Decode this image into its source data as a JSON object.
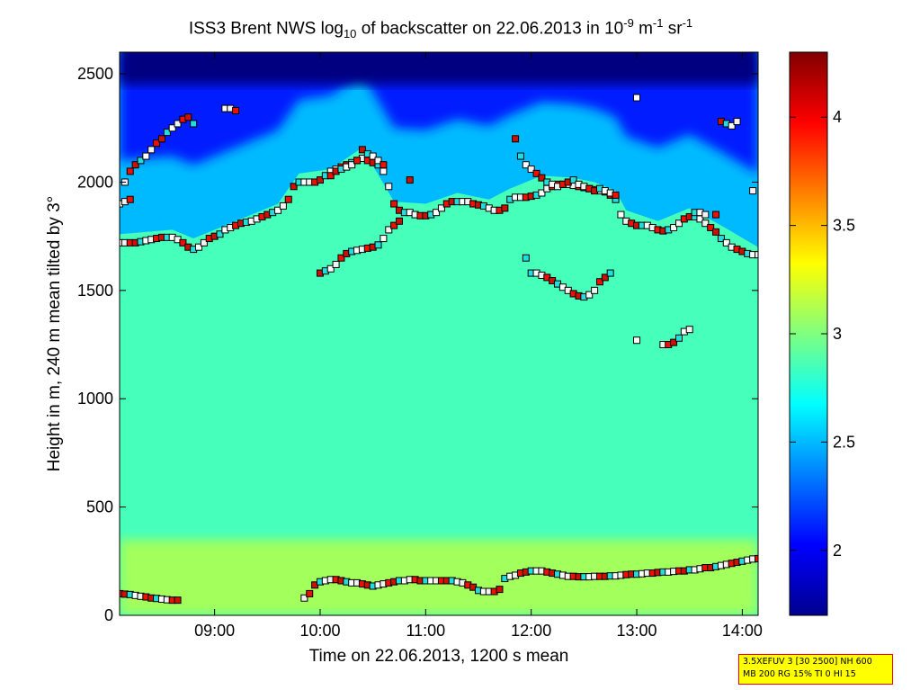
{
  "title": {
    "prefix": "ISS3 Brent NWS log",
    "log_base": "10",
    "middle": " of backscatter on 22.06.2013 in 10",
    "exp1": "-9",
    "unit_m": " m",
    "exp2": "-1",
    "unit_sr": " sr",
    "exp3": "-1"
  },
  "info_box": {
    "line1": "3.5XEFUV 3 [30 2500] NH 600",
    "line2": "MB 200 RG 15% TI 0 HI 15"
  },
  "chart_data": {
    "type": "heatmap",
    "xlabel": "Time on 22.06.2013, 1200 s mean",
    "ylabel": "Height in m, 240 m mean tilted by 3°",
    "x_unit": "hours",
    "xlim": [
      8.1,
      14.15
    ],
    "ylim": [
      0,
      2600
    ],
    "x_ticks": [
      {
        "value": 9,
        "label": "09:00"
      },
      {
        "value": 10,
        "label": "10:00"
      },
      {
        "value": 11,
        "label": "11:00"
      },
      {
        "value": 12,
        "label": "12:00"
      },
      {
        "value": 13,
        "label": "13:00"
      },
      {
        "value": 14,
        "label": "14:00"
      }
    ],
    "y_ticks": [
      0,
      500,
      1000,
      1500,
      2000,
      2500
    ],
    "colorbar": {
      "range": [
        1.7,
        4.3
      ],
      "ticks": [
        2,
        2.5,
        3,
        3.5,
        4
      ],
      "colormap": "jet"
    },
    "field_description": {
      "boundary_layer_top_m": [
        [
          8.1,
          1720
        ],
        [
          8.6,
          1740
        ],
        [
          8.8,
          1700
        ],
        [
          9.0,
          1740
        ],
        [
          9.3,
          1800
        ],
        [
          9.6,
          1860
        ],
        [
          9.8,
          2000
        ],
        [
          10.1,
          2020
        ],
        [
          10.4,
          2120
        ],
        [
          10.7,
          1870
        ],
        [
          11.0,
          1860
        ],
        [
          11.3,
          1910
        ],
        [
          11.6,
          1880
        ],
        [
          11.8,
          1930
        ],
        [
          12.1,
          1990
        ],
        [
          12.4,
          1980
        ],
        [
          12.6,
          1960
        ],
        [
          12.8,
          1920
        ],
        [
          12.9,
          1830
        ],
        [
          13.2,
          1780
        ],
        [
          13.5,
          1840
        ],
        [
          13.8,
          1760
        ],
        [
          14.15,
          1660
        ]
      ],
      "values": {
        "sky_above": 1.7,
        "cloud_band": 2.5,
        "boundary_layer": 2.85,
        "near_surface": 3.15
      }
    },
    "series": [
      {
        "marker": "square",
        "x": [
          8.1,
          8.15,
          8.2,
          8.25,
          8.3,
          8.35,
          8.4,
          8.45,
          8.5,
          8.55,
          8.6,
          8.65,
          8.7,
          8.75,
          8.8,
          8.85,
          8.9,
          8.95,
          9.0,
          9.05,
          9.1,
          9.15,
          9.2,
          9.25,
          9.3,
          9.35,
          9.4,
          9.45,
          9.5,
          9.55,
          9.6,
          9.65,
          9.7,
          9.75,
          9.8,
          9.85,
          9.9,
          9.95,
          10.0,
          10.05,
          10.1,
          10.15,
          10.2,
          10.25,
          10.3,
          10.35,
          10.4,
          10.45,
          10.5,
          10.55,
          10.6,
          10.65,
          10.7,
          10.75,
          10.8,
          10.85,
          10.9,
          10.95,
          11.0,
          11.05,
          11.1,
          11.15,
          11.2,
          11.25,
          11.3,
          11.35,
          11.4,
          11.45,
          11.5,
          11.55,
          11.6,
          11.65,
          11.7,
          11.75,
          11.8,
          11.85,
          11.9,
          11.95,
          12.0,
          12.05,
          12.1,
          12.15,
          12.2,
          12.25,
          12.3,
          12.35,
          12.4,
          12.45,
          12.5,
          12.55,
          12.6,
          12.65,
          12.7,
          12.75,
          12.8,
          12.85,
          12.9,
          12.95,
          13.0,
          13.05,
          13.1,
          13.15,
          13.2,
          13.25,
          13.3,
          13.35,
          13.4,
          13.45,
          13.5,
          13.55,
          13.6,
          13.65,
          13.7,
          13.75,
          13.8,
          13.85,
          13.9,
          13.95,
          14.0,
          14.05,
          14.1,
          14.15
        ],
        "y": [
          1720,
          1720,
          1720,
          1720,
          1725,
          1730,
          1735,
          1740,
          1745,
          1745,
          1745,
          1735,
          1720,
          1700,
          1690,
          1700,
          1720,
          1740,
          1750,
          1760,
          1780,
          1790,
          1800,
          1810,
          1815,
          1820,
          1830,
          1840,
          1850,
          1860,
          1870,
          1890,
          1920,
          1980,
          2000,
          2000,
          2000,
          2000,
          2010,
          2030,
          2050,
          2060,
          2070,
          2080,
          2090,
          2100,
          2110,
          2100,
          2090,
          2080,
          2050,
          1980,
          1900,
          1870,
          1860,
          1860,
          1850,
          1845,
          1845,
          1850,
          1860,
          1880,
          1900,
          1910,
          1910,
          1910,
          1910,
          1900,
          1895,
          1890,
          1880,
          1870,
          1870,
          1880,
          1920,
          1930,
          1930,
          1930,
          1935,
          1940,
          1950,
          1970,
          1980,
          1990,
          1990,
          1990,
          1985,
          1980,
          1975,
          1970,
          1965,
          1960,
          1955,
          1940,
          1920,
          1850,
          1820,
          1810,
          1800,
          1800,
          1800,
          1790,
          1780,
          1775,
          1780,
          1790,
          1810,
          1830,
          1840,
          1840,
          1830,
          1810,
          1790,
          1770,
          1740,
          1720,
          1700,
          1690,
          1680,
          1670,
          1665,
          1665
        ]
      },
      {
        "marker": "square",
        "x": [
          9.85,
          9.9,
          9.95,
          10.0,
          10.05,
          10.1,
          10.15,
          10.2,
          10.25,
          10.3,
          10.35,
          10.4,
          10.45,
          10.5,
          10.55,
          10.6,
          10.65,
          10.7,
          10.75,
          10.8,
          10.85,
          10.9,
          10.95,
          11.0,
          11.05,
          11.1,
          11.15,
          11.2,
          11.25,
          11.3,
          11.35,
          11.4,
          11.45,
          11.5,
          11.55,
          11.6,
          11.65,
          11.7,
          11.75,
          11.8,
          11.85,
          11.9,
          11.95,
          12.0,
          12.05,
          12.1,
          12.15,
          12.2,
          12.25,
          12.3,
          12.35,
          12.4,
          12.45,
          12.5,
          12.55,
          12.6,
          12.65,
          12.7,
          12.75,
          12.8,
          12.85,
          12.9,
          12.95,
          13.0,
          13.05,
          13.1,
          13.15,
          13.2,
          13.25,
          13.3,
          13.35,
          13.4,
          13.45,
          13.5,
          13.55,
          13.6,
          13.65,
          13.7,
          13.75,
          13.8,
          13.85,
          13.9,
          13.95,
          14.0,
          14.05,
          14.1,
          14.15
        ],
        "y": [
          80,
          100,
          140,
          155,
          160,
          165,
          165,
          160,
          155,
          150,
          150,
          145,
          140,
          135,
          140,
          145,
          150,
          155,
          160,
          160,
          165,
          165,
          160,
          160,
          160,
          160,
          160,
          160,
          160,
          155,
          150,
          140,
          130,
          115,
          110,
          110,
          110,
          120,
          170,
          180,
          185,
          195,
          200,
          205,
          205,
          205,
          200,
          195,
          190,
          185,
          180,
          180,
          178,
          178,
          178,
          180,
          180,
          180,
          182,
          182,
          185,
          188,
          190,
          190,
          192,
          195,
          195,
          198,
          200,
          200,
          203,
          205,
          205,
          210,
          210,
          215,
          220,
          220,
          225,
          230,
          235,
          240,
          245,
          250,
          255,
          260,
          262
        ]
      },
      {
        "marker": "square",
        "x": [
          8.1,
          8.15,
          8.2,
          8.25,
          8.3,
          8.35,
          8.4,
          8.45,
          8.5,
          8.55,
          8.6,
          8.65
        ],
        "y": [
          100,
          98,
          96,
          92,
          88,
          85,
          80,
          78,
          75,
          72,
          70,
          70
        ]
      },
      {
        "marker": "square",
        "x": [
          10.0,
          10.05,
          10.1,
          10.15,
          10.2,
          10.25,
          10.3,
          10.35,
          10.4,
          10.45,
          10.5,
          10.55,
          10.6,
          10.65,
          10.7,
          10.75
        ],
        "y": [
          1580,
          1590,
          1600,
          1620,
          1650,
          1670,
          1680,
          1685,
          1690,
          1695,
          1700,
          1710,
          1740,
          1780,
          1800,
          1820
        ]
      },
      {
        "marker": "square",
        "x": [
          12.0,
          12.05,
          12.1,
          12.15,
          12.2,
          12.25,
          12.3,
          12.35,
          12.4,
          12.45,
          12.5,
          12.55,
          12.6,
          12.65,
          12.7,
          12.75
        ],
        "y": [
          1580,
          1580,
          1570,
          1560,
          1545,
          1530,
          1515,
          1500,
          1485,
          1475,
          1470,
          1480,
          1500,
          1540,
          1560,
          1580
        ]
      },
      {
        "marker": "square",
        "x": [
          13.0,
          13.25,
          13.3,
          13.35,
          13.4,
          13.45,
          13.5
        ],
        "y": [
          1270,
          1250,
          1250,
          1260,
          1280,
          1310,
          1320
        ]
      },
      {
        "marker": "square",
        "x": [
          8.15,
          8.2,
          8.25,
          8.3,
          8.35,
          8.4,
          8.45,
          8.5,
          8.55,
          8.6,
          8.65,
          8.7,
          8.75,
          8.8,
          9.1,
          9.15,
          9.2
        ],
        "y": [
          2000,
          2050,
          2080,
          2100,
          2120,
          2150,
          2180,
          2200,
          2230,
          2250,
          2270,
          2290,
          2300,
          2270,
          2340,
          2340,
          2330
        ]
      },
      {
        "marker": "square",
        "x": [
          10.1,
          10.15,
          10.2,
          10.25,
          10.3,
          10.35,
          10.4,
          10.45,
          10.5,
          10.55,
          10.6
        ],
        "y": [
          2030,
          2050,
          2060,
          2070,
          2080,
          2100,
          2150,
          2130,
          2120,
          2100,
          2080
        ]
      },
      {
        "marker": "square",
        "x": [
          11.85,
          11.9,
          11.95,
          12.0,
          12.05,
          12.1,
          12.15,
          12.2,
          12.25,
          12.3,
          12.35,
          12.4,
          12.45,
          12.5,
          12.55,
          12.6,
          12.65,
          12.7,
          12.75,
          12.8
        ],
        "y": [
          2200,
          2120,
          2080,
          2060,
          2040,
          2020,
          2000,
          1990,
          1980,
          1990,
          2000,
          2010,
          1990,
          1980,
          1970,
          1960,
          1970,
          1960,
          1950,
          1940
        ]
      },
      {
        "marker": "square",
        "x": [
          13.55,
          13.6,
          13.65,
          13.75,
          13.8,
          13.85,
          13.9,
          13.95
        ],
        "y": [
          1860,
          1860,
          1850,
          1850,
          2280,
          2270,
          2260,
          2280
        ]
      },
      {
        "marker": "square",
        "x": [
          8.1,
          8.15,
          8.2,
          10.85,
          11.95,
          13.0,
          14.1
        ],
        "y": [
          1900,
          1910,
          1920,
          2010,
          1650,
          2390,
          1960
        ]
      }
    ]
  },
  "colors": {
    "marker_colors": [
      "#ffffff",
      "#f2f2f2",
      "#ee1100",
      "#cc1100",
      "#22dddd",
      "#000000"
    ]
  }
}
